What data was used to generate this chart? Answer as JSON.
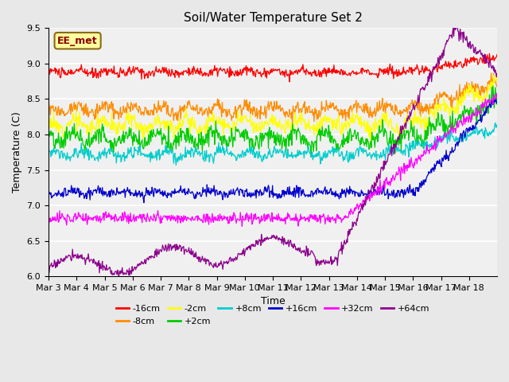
{
  "title": "Soil/Water Temperature Set 2",
  "xlabel": "Time",
  "ylabel": "Temperature (C)",
  "ylim": [
    6.0,
    9.5
  ],
  "annotation_text": "EE_met",
  "annotation_color": "#8B0000",
  "annotation_bg": "#FFFFA0",
  "annotation_edge": "#8B6914",
  "series": [
    {
      "label": "-16cm",
      "color": "#FF0000"
    },
    {
      "label": "-8cm",
      "color": "#FF8C00"
    },
    {
      "label": "-2cm",
      "color": "#FFFF00"
    },
    {
      "label": "+2cm",
      "color": "#00CC00"
    },
    {
      "label": "+8cm",
      "color": "#00CCCC"
    },
    {
      "label": "+16cm",
      "color": "#0000CC"
    },
    {
      "label": "+32cm",
      "color": "#FF00FF"
    },
    {
      "label": "+64cm",
      "color": "#8B008B"
    }
  ],
  "tick_labels": [
    "Mar 3",
    "Mar 4",
    "Mar 5",
    "Mar 6",
    "Mar 7",
    "Mar 8",
    "Mar 9",
    "Mar 10",
    "Mar 11",
    "Mar 12",
    "Mar 13",
    "Mar 14",
    "Mar 15",
    "Mar 16",
    "Mar 17",
    "Mar 18"
  ],
  "yticks": [
    6.0,
    6.5,
    7.0,
    7.5,
    8.0,
    8.5,
    9.0,
    9.5
  ],
  "bg_color": "#E8E8E8",
  "plot_bg_color": "#F0F0F0",
  "n_days": 16,
  "n_per_day": 48
}
